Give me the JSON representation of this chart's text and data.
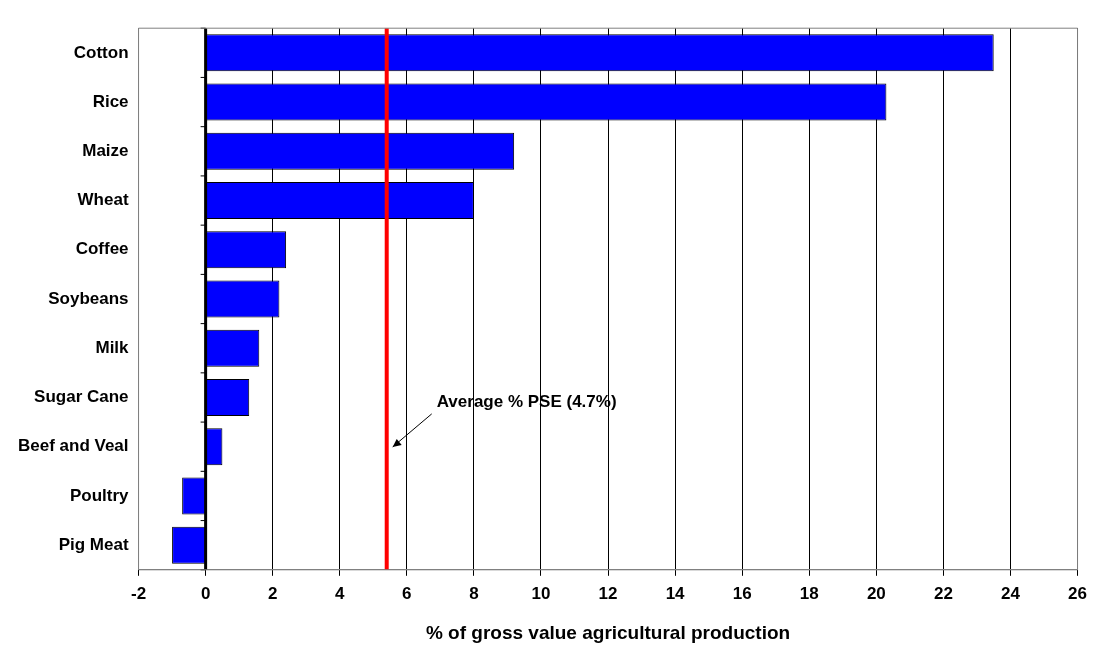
{
  "chart_data": {
    "type": "bar",
    "orientation": "horizontal",
    "xlabel": "% of gross value agricultural production",
    "categories": [
      "Cotton",
      "Rice",
      "Maize",
      "Wheat",
      "Coffee",
      "Soybeans",
      "Milk",
      "Sugar Cane",
      "Beef and Veal",
      "Poultry",
      "Pig Meat"
    ],
    "values": [
      23.5,
      20.3,
      9.2,
      8.0,
      2.4,
      2.2,
      1.6,
      1.3,
      0.5,
      -0.7,
      -1.0
    ],
    "color": "#0000ff",
    "xlim": [
      -2,
      26
    ],
    "xticks": [
      -2,
      0,
      2,
      4,
      6,
      8,
      10,
      12,
      14,
      16,
      18,
      20,
      22,
      24,
      26
    ],
    "grid": "x",
    "legend": false,
    "ref_lines": [
      {
        "axis": "x",
        "value": 5.4,
        "label": "Average % PSE (4.7%)",
        "color": "#ff0000"
      }
    ]
  }
}
